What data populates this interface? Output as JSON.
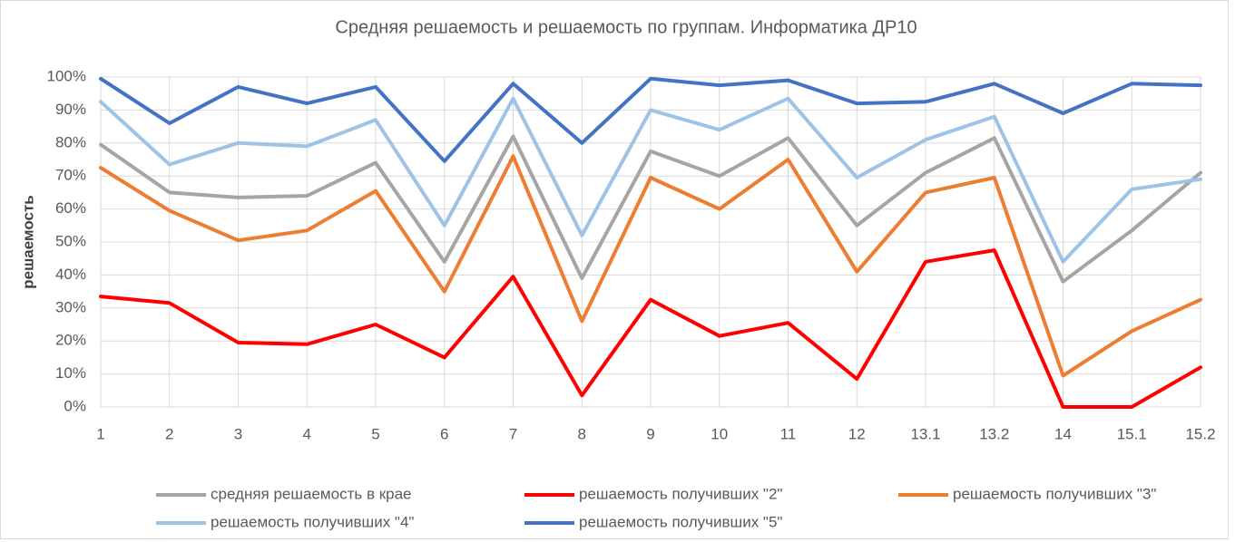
{
  "chart_data": {
    "type": "line",
    "title": "Средняя решаемость и решаемость по группам. Информатика ДР10",
    "y_label": "решаемость",
    "categories": [
      "1",
      "2",
      "3",
      "4",
      "5",
      "6",
      "7",
      "8",
      "9",
      "10",
      "11",
      "12",
      "13.1",
      "13.2",
      "14",
      "15.1",
      "15.2"
    ],
    "series": [
      {
        "name": "средняя решаемость в крае",
        "color": "#a5a5a5",
        "values": [
          79.5,
          65,
          63.5,
          64,
          74,
          44,
          82,
          39,
          77.5,
          70,
          81.5,
          55,
          71,
          81.5,
          38,
          53.5,
          71
        ]
      },
      {
        "name": "решаемость получивших \"2\"",
        "color": "#ff0000",
        "values": [
          33.5,
          31.5,
          19.5,
          19,
          25,
          15,
          39.5,
          3.5,
          32.5,
          21.5,
          25.5,
          8.5,
          44,
          47.5,
          0,
          0,
          12
        ]
      },
      {
        "name": "решаемость получивших \"3\"",
        "color": "#ed7d31",
        "values": [
          72.5,
          59.5,
          50.5,
          53.5,
          65.5,
          35,
          76,
          26,
          69.5,
          60,
          75,
          41,
          65,
          69.5,
          9.5,
          23,
          32.5
        ]
      },
      {
        "name": "решаемость получивших \"4\"",
        "color": "#9dc3e6",
        "values": [
          92.5,
          73.5,
          80,
          79,
          87,
          55,
          93.5,
          52,
          90,
          84,
          93.5,
          69.5,
          81,
          88,
          44,
          66,
          69
        ]
      },
      {
        "name": "решаемость получивших \"5\"",
        "color": "#4472c4",
        "values": [
          99.5,
          86,
          97,
          92,
          97,
          74.5,
          98,
          80,
          99.5,
          97.5,
          99,
          92,
          92.5,
          98,
          89,
          98,
          97.5
        ]
      }
    ],
    "ylim": [
      0,
      100
    ],
    "yticks": [
      {
        "value": 0,
        "label": "0%"
      },
      {
        "value": 10,
        "label": "10%"
      },
      {
        "value": 20,
        "label": "20%"
      },
      {
        "value": 30,
        "label": "30%"
      },
      {
        "value": 40,
        "label": "40%"
      },
      {
        "value": 50,
        "label": "50%"
      },
      {
        "value": 60,
        "label": "60%"
      },
      {
        "value": 70,
        "label": "70%"
      },
      {
        "value": 80,
        "label": "80%"
      },
      {
        "value": 90,
        "label": "90%"
      },
      {
        "value": 100,
        "label": "100%"
      }
    ],
    "grid": true,
    "legend": "bottom"
  }
}
